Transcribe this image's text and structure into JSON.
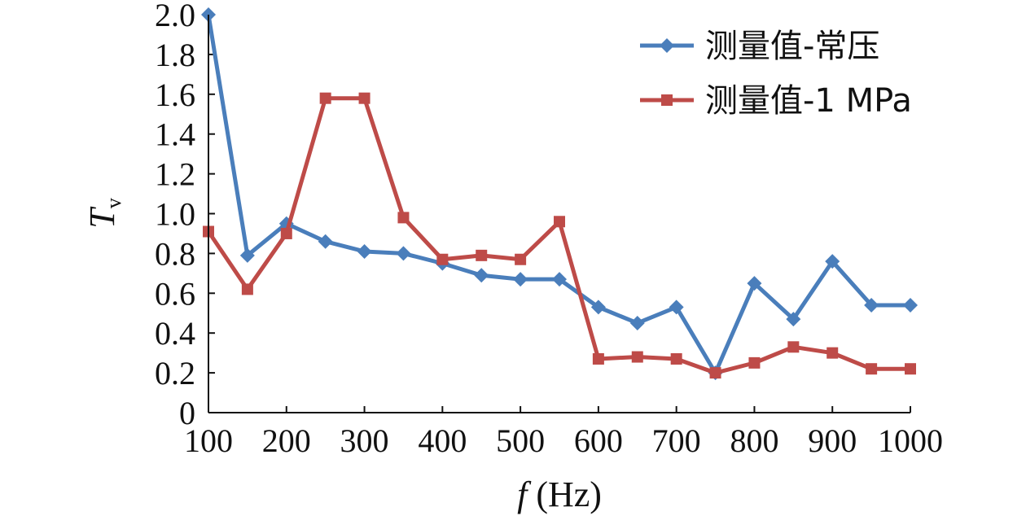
{
  "chart_data": {
    "type": "line",
    "xlabel": {
      "var": "f",
      "unit": " (Hz)"
    },
    "ylabel": {
      "main": "T",
      "sub": "v"
    },
    "xlim": [
      100,
      1000
    ],
    "ylim": [
      0,
      2.0
    ],
    "x_ticks": [
      "100",
      "200",
      "300",
      "400",
      "500",
      "600",
      "700",
      "800",
      "900",
      "1000"
    ],
    "y_ticks": [
      "0",
      "0.2",
      "0.4",
      "0.6",
      "0.8",
      "1.0",
      "1.2",
      "1.4",
      "1.6",
      "1.8",
      "2.0"
    ],
    "grid": false,
    "legend_position": "top-right",
    "x": [
      100,
      150,
      200,
      250,
      300,
      350,
      400,
      450,
      500,
      550,
      600,
      650,
      700,
      750,
      800,
      850,
      900,
      950,
      1000
    ],
    "series": [
      {
        "name": "测量值-常压",
        "color": "#4a7ebb",
        "marker": "diamond",
        "values": [
          2.0,
          0.79,
          0.95,
          0.86,
          0.81,
          0.8,
          0.75,
          0.69,
          0.67,
          0.67,
          0.53,
          0.45,
          0.53,
          0.2,
          0.65,
          0.47,
          0.76,
          0.54,
          0.54
        ]
      },
      {
        "name": "测量值-1 MPa",
        "color": "#be4b48",
        "marker": "square",
        "values": [
          0.91,
          0.62,
          0.9,
          1.58,
          1.58,
          0.98,
          0.77,
          0.79,
          0.77,
          0.96,
          0.27,
          0.28,
          0.27,
          0.2,
          0.25,
          0.33,
          0.3,
          0.22,
          0.22
        ]
      }
    ]
  }
}
